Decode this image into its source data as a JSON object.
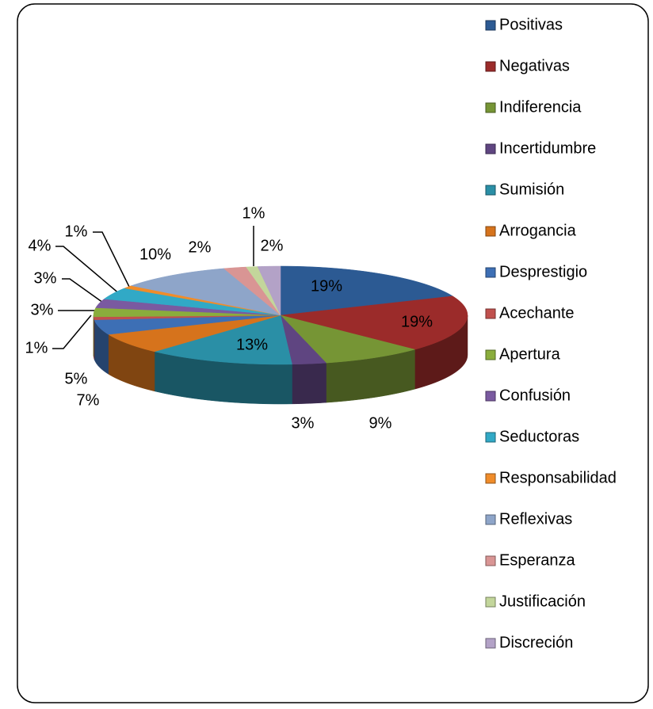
{
  "chart_data": {
    "type": "pie3d",
    "categories": [
      "Positivas",
      "Negativas",
      "Indiferencia",
      "Incertidumbre",
      "Sumisión",
      "Arrogancia",
      "Desprestigio",
      "Acechante",
      "Apertura",
      "Confusión",
      "Seductoras",
      "Responsabilidad",
      "Reflexivas",
      "Esperanza",
      "Justificación",
      "Discreción"
    ],
    "values": [
      19,
      19,
      9,
      3,
      13,
      7,
      5,
      1,
      3,
      3,
      4,
      1,
      10,
      2,
      1,
      2
    ],
    "value_labels": [
      "19%",
      "19%",
      "9%",
      "3%",
      "13%",
      "7%",
      "5%",
      "1%",
      "3%",
      "3%",
      "4%",
      "1%",
      "10%",
      "2%",
      "1%",
      "2%"
    ],
    "colors": [
      "#2c5a93",
      "#9b2b2a",
      "#769535",
      "#5f4581",
      "#2a8fa6",
      "#d6731c",
      "#3d6fb5",
      "#c0504d",
      "#8aad3c",
      "#7a5aa0",
      "#31a9c6",
      "#f08c2a",
      "#8ea5c9",
      "#d99594",
      "#c3d69b",
      "#b3a2c7"
    ],
    "legend": "right"
  }
}
